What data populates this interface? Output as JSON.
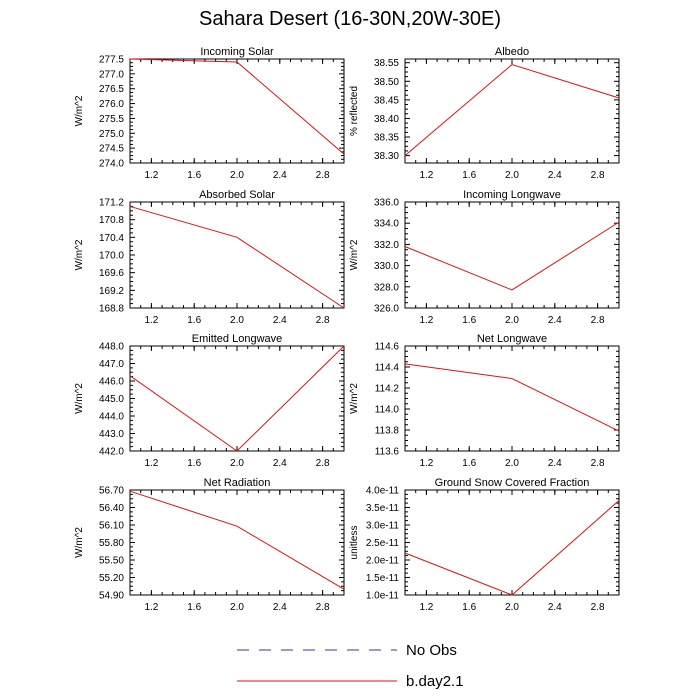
{
  "title": "Sahara Desert (16-30N,20W-30E)",
  "legend": [
    {
      "label": "No Obs",
      "color": "#3333aa",
      "dash": true
    },
    {
      "label": "b.day2.1",
      "color": "#e01010",
      "dash": false
    }
  ],
  "chart_data": [
    {
      "type": "line",
      "title": "Incoming Solar",
      "ylabel": "W/m^2",
      "xlim": [
        1,
        3
      ],
      "ylim": [
        274.0,
        277.5
      ],
      "xticks": [
        "1.2",
        "1.6",
        "2.0",
        "2.4",
        "2.8"
      ],
      "yticks": [
        "274.0",
        "274.5",
        "275.0",
        "275.5",
        "276.0",
        "276.5",
        "277.0",
        "277.5"
      ],
      "series": [
        {
          "x": [
            1,
            2,
            3
          ],
          "y": [
            277.5,
            277.4,
            274.3
          ]
        }
      ]
    },
    {
      "type": "line",
      "title": "Albedo",
      "ylabel": "% reflected",
      "xlim": [
        1,
        3
      ],
      "ylim": [
        38.28,
        38.56
      ],
      "xticks": [
        "1.2",
        "1.6",
        "2.0",
        "2.4",
        "2.8"
      ],
      "yticks": [
        "38.30",
        "38.35",
        "38.40",
        "38.45",
        "38.50",
        "38.55"
      ],
      "series": [
        {
          "x": [
            1,
            2,
            3
          ],
          "y": [
            38.3,
            38.545,
            38.455
          ]
        }
      ]
    },
    {
      "type": "line",
      "title": "Absorbed Solar",
      "ylabel": "W/m^2",
      "xlim": [
        1,
        3
      ],
      "ylim": [
        168.8,
        171.2
      ],
      "xticks": [
        "1.2",
        "1.6",
        "2.0",
        "2.4",
        "2.8"
      ],
      "yticks": [
        "168.8",
        "169.2",
        "169.6",
        "170.0",
        "170.4",
        "170.8",
        "171.2"
      ],
      "series": [
        {
          "x": [
            1,
            2,
            3
          ],
          "y": [
            171.1,
            170.4,
            168.8
          ]
        }
      ]
    },
    {
      "type": "line",
      "title": "Incoming Longwave",
      "ylabel": "W/m^2",
      "xlim": [
        1,
        3
      ],
      "ylim": [
        326.0,
        336.0
      ],
      "xticks": [
        "1.2",
        "1.6",
        "2.0",
        "2.4",
        "2.8"
      ],
      "yticks": [
        "326.0",
        "328.0",
        "330.0",
        "332.0",
        "334.0",
        "336.0"
      ],
      "series": [
        {
          "x": [
            1,
            2,
            3
          ],
          "y": [
            331.8,
            327.7,
            334.1
          ]
        }
      ]
    },
    {
      "type": "line",
      "title": "Emitted Longwave",
      "ylabel": "W/m^2",
      "xlim": [
        1,
        3
      ],
      "ylim": [
        442.0,
        448.0
      ],
      "xticks": [
        "1.2",
        "1.6",
        "2.0",
        "2.4",
        "2.8"
      ],
      "yticks": [
        "442.0",
        "443.0",
        "444.0",
        "445.0",
        "446.0",
        "447.0",
        "448.0"
      ],
      "series": [
        {
          "x": [
            1,
            2,
            3
          ],
          "y": [
            446.3,
            442.0,
            448.0
          ]
        }
      ]
    },
    {
      "type": "line",
      "title": "Net Longwave",
      "ylabel": "W/m^2",
      "xlim": [
        1,
        3
      ],
      "ylim": [
        113.6,
        114.6
      ],
      "xticks": [
        "1.2",
        "1.6",
        "2.0",
        "2.4",
        "2.8"
      ],
      "yticks": [
        "113.6",
        "113.8",
        "114.0",
        "114.2",
        "114.4",
        "114.6"
      ],
      "series": [
        {
          "x": [
            1,
            2,
            3
          ],
          "y": [
            114.43,
            114.29,
            113.79
          ]
        }
      ]
    },
    {
      "type": "line",
      "title": "Net Radiation",
      "ylabel": "W/m^2",
      "xlim": [
        1,
        3
      ],
      "ylim": [
        54.9,
        56.7
      ],
      "xticks": [
        "1.2",
        "1.6",
        "2.0",
        "2.4",
        "2.8"
      ],
      "yticks": [
        "54.90",
        "55.20",
        "55.50",
        "55.80",
        "56.10",
        "56.40",
        "56.70"
      ],
      "series": [
        {
          "x": [
            1,
            2,
            3
          ],
          "y": [
            56.68,
            56.08,
            55.0
          ]
        }
      ]
    },
    {
      "type": "line",
      "title": "Ground Snow Covered Fraction",
      "ylabel": "unitless",
      "xlim": [
        1,
        3
      ],
      "ylim": [
        1e-11,
        4e-11
      ],
      "xticks": [
        "1.2",
        "1.6",
        "2.0",
        "2.4",
        "2.8"
      ],
      "yticks": [
        "1.0e-11",
        "1.5e-11",
        "2.0e-11",
        "2.5e-11",
        "3.0e-11",
        "3.5e-11",
        "4.0e-11"
      ],
      "series": [
        {
          "x": [
            1,
            2,
            3
          ],
          "y": [
            2.2e-11,
            1e-11,
            3.7e-11
          ]
        }
      ]
    }
  ]
}
